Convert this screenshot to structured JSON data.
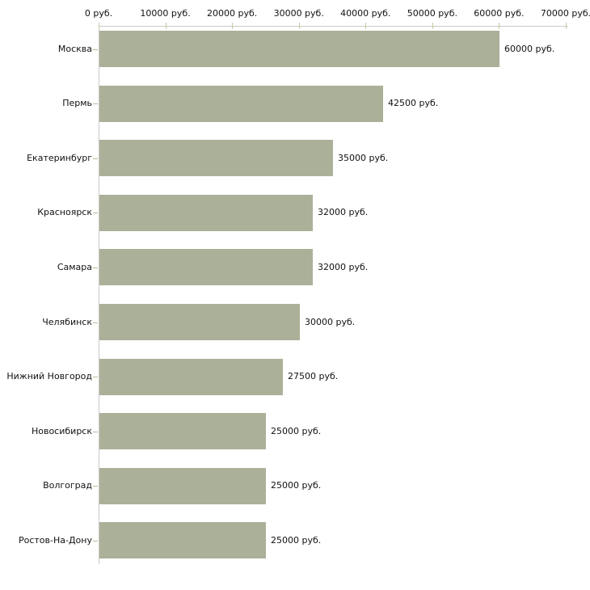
{
  "chart_data": {
    "type": "bar",
    "orientation": "horizontal",
    "title": "",
    "xlabel": "",
    "ylabel": "",
    "categories": [
      "Москва",
      "Пермь",
      "Екатеринбург",
      "Красноярск",
      "Самара",
      "Челябинск",
      "Нижний Новгород",
      "Новосибирск",
      "Волгоград",
      "Ростов-На-Дону"
    ],
    "values": [
      60000,
      42500,
      35000,
      32000,
      32000,
      30000,
      27500,
      25000,
      25000,
      25000
    ],
    "value_labels": [
      "60000 руб.",
      "42500 руб.",
      "35000 руб.",
      "32000 руб.",
      "32000 руб.",
      "30000 руб.",
      "27500 руб.",
      "25000 руб.",
      "25000 руб.",
      "25000 руб."
    ],
    "xlim": [
      0,
      70000
    ],
    "x_ticks": [
      0,
      10000,
      20000,
      30000,
      40000,
      50000,
      60000,
      70000
    ],
    "x_tick_labels": [
      "0 руб.",
      "10000 руб.",
      "20000 руб.",
      "30000 руб.",
      "40000 руб.",
      "50000 руб.",
      "60000 руб.",
      "70000 руб."
    ],
    "grid": false,
    "legend": "none",
    "value_suffix": " руб.",
    "colors": {
      "bar": "#abb199",
      "axis_line": "#c9c9c9",
      "x_tick_mark": "#c6c99f",
      "category_tick_mark": "#bcb795",
      "text": "#111111",
      "background": "#ffffff"
    }
  }
}
